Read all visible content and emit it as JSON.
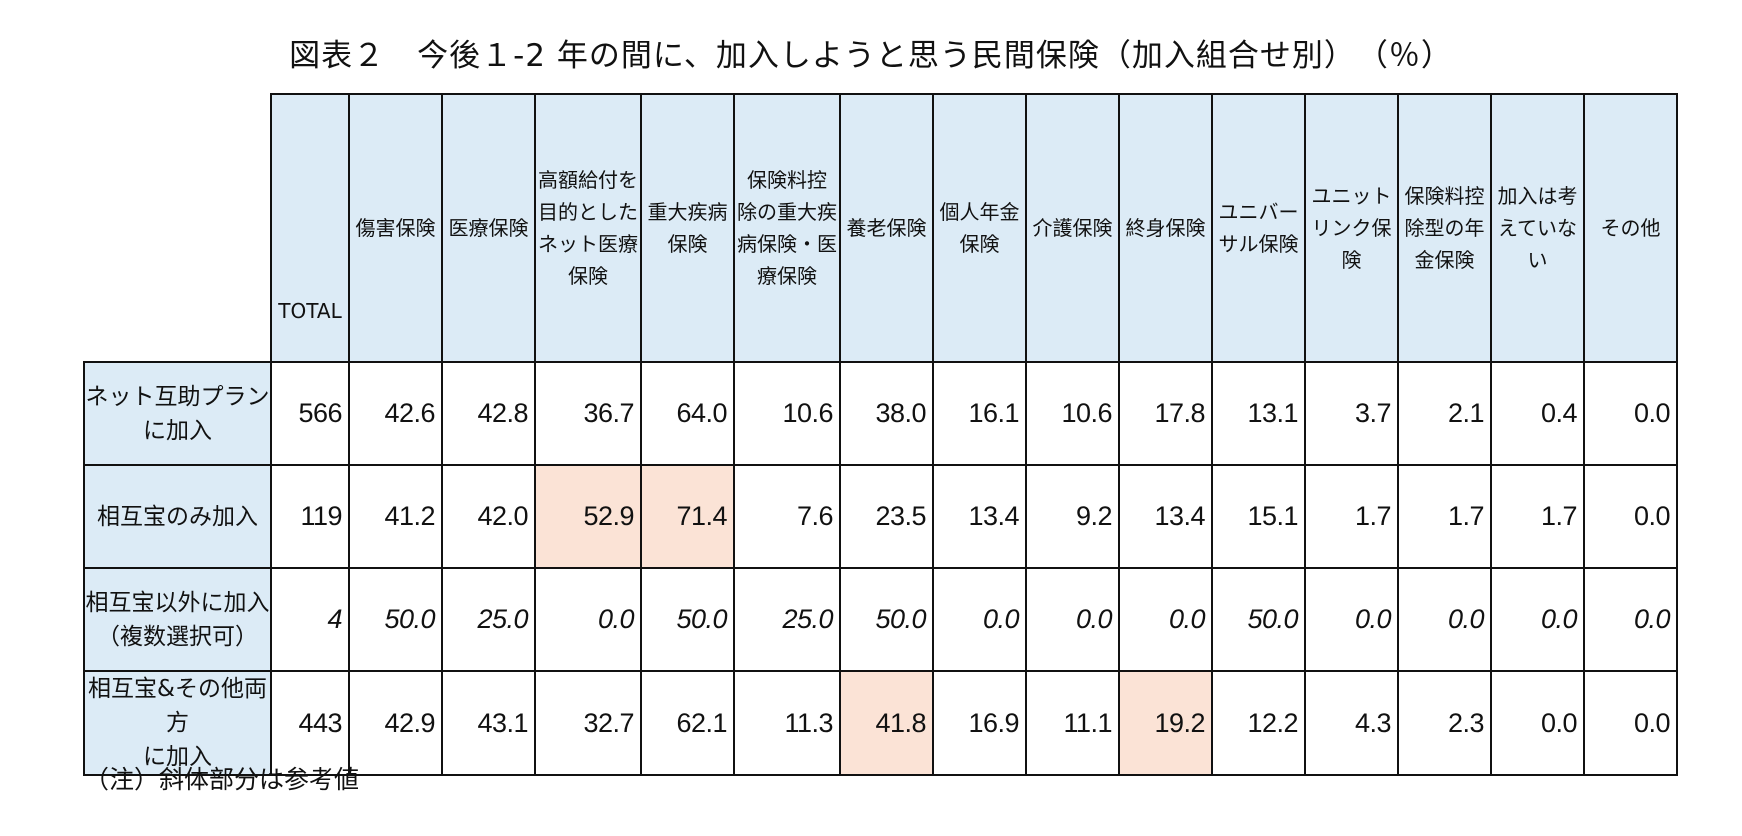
{
  "title": "図表２　今後１-2 年の間に、加入しようと思う民間保険（加入組合せ別）　（％）",
  "note": "（注）斜体部分は参考値",
  "highlight_color": "#fbe3d6",
  "header_color": "#dcebf6",
  "chart_data": {
    "type": "table",
    "columns": [
      "TOTAL",
      "傷害保険",
      "医療保険",
      "高額給付を\n目的とした\nネット医療\n保険",
      "重大疾病\n保険",
      "保険料控\n除の重大疾\n病保険・医\n療保険",
      "養老保険",
      "個人年金\n保険",
      "介護保険",
      "終身保険",
      "ユニバー\nサル保険",
      "ユニット\nリンク保険",
      "保険料控\n除型の年\n金保険",
      "加入は考\nえていない",
      "その他"
    ],
    "rows": [
      {
        "label": "ネット互助プラン\nに加入",
        "italic": false,
        "values": [
          "566",
          "42.6",
          "42.8",
          "36.7",
          "64.0",
          "10.6",
          "38.0",
          "16.1",
          "10.6",
          "17.8",
          "13.1",
          "3.7",
          "2.1",
          "0.4",
          "0.0"
        ],
        "highlight": []
      },
      {
        "label": "相互宝のみ加入",
        "italic": false,
        "values": [
          "119",
          "41.2",
          "42.0",
          "52.9",
          "71.4",
          "7.6",
          "23.5",
          "13.4",
          "9.2",
          "13.4",
          "15.1",
          "1.7",
          "1.7",
          "1.7",
          "0.0"
        ],
        "highlight": [
          3,
          4
        ]
      },
      {
        "label": "相互宝以外に加入\n（複数選択可）",
        "italic": true,
        "values": [
          "4",
          "50.0",
          "25.0",
          "0.0",
          "50.0",
          "25.0",
          "50.0",
          "0.0",
          "0.0",
          "0.0",
          "50.0",
          "0.0",
          "0.0",
          "0.0",
          "0.0"
        ],
        "highlight": []
      },
      {
        "label": "相互宝&その他両方\nに加入",
        "italic": false,
        "values": [
          "443",
          "42.9",
          "43.1",
          "32.7",
          "62.1",
          "11.3",
          "41.8",
          "16.9",
          "11.1",
          "19.2",
          "12.2",
          "4.3",
          "2.3",
          "0.0",
          "0.0"
        ],
        "highlight": [
          6,
          9
        ]
      }
    ]
  }
}
